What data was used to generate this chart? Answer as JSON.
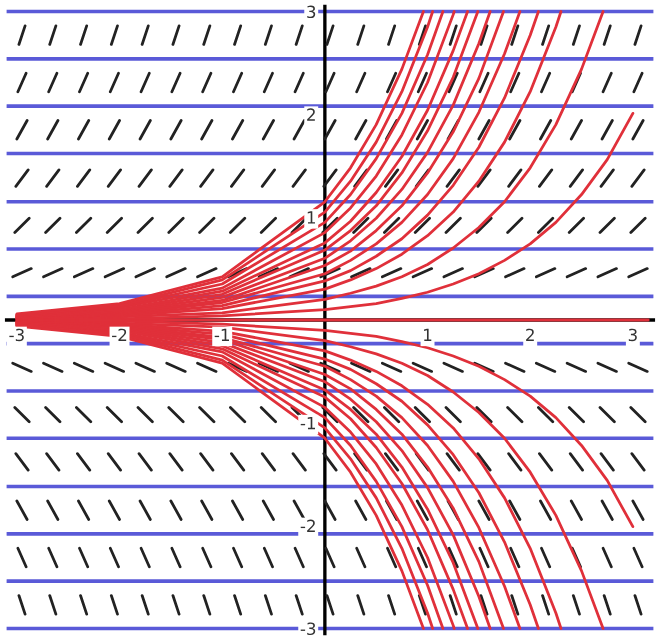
{
  "chart_data": {
    "type": "line",
    "xlim": [
      -3.1,
      3.2
    ],
    "ylim": [
      -3.05,
      3.05
    ],
    "xticks": [
      -3,
      -2,
      -1,
      1,
      2,
      3
    ],
    "yticks": [
      -3,
      -2,
      -1,
      1,
      2,
      3
    ],
    "marker": "none",
    "line_style": "solid",
    "ref_lines": [
      {
        "axis": "y",
        "value": 3.0,
        "color": "#5a5ad8"
      },
      {
        "axis": "y",
        "value": 2.54,
        "color": "#5a5ad8"
      },
      {
        "axis": "y",
        "value": 2.08,
        "color": "#5a5ad8"
      },
      {
        "axis": "y",
        "value": 1.62,
        "color": "#5a5ad8"
      },
      {
        "axis": "y",
        "value": 1.15,
        "color": "#5a5ad8"
      },
      {
        "axis": "y",
        "value": 0.69,
        "color": "#5a5ad8"
      },
      {
        "axis": "y",
        "value": 0.23,
        "color": "#5a5ad8"
      },
      {
        "axis": "y",
        "value": -0.23,
        "color": "#5a5ad8"
      },
      {
        "axis": "y",
        "value": -0.69,
        "color": "#5a5ad8"
      },
      {
        "axis": "y",
        "value": -1.15,
        "color": "#5a5ad8"
      },
      {
        "axis": "y",
        "value": -1.62,
        "color": "#5a5ad8"
      },
      {
        "axis": "y",
        "value": -2.08,
        "color": "#5a5ad8"
      },
      {
        "axis": "y",
        "value": -2.54,
        "color": "#5a5ad8"
      },
      {
        "axis": "y",
        "value": -3.0,
        "color": "#5a5ad8"
      }
    ],
    "series": [
      {
        "color": "#222222",
        "x": [
          -2.98,
          -2.92,
          null,
          -2.68,
          -2.62,
          null,
          -2.38,
          -2.32,
          null,
          -2.08,
          -2.02,
          null,
          -1.78,
          -1.72,
          null,
          -1.48,
          -1.42,
          null,
          -1.18,
          -1.12,
          null,
          -0.88,
          -0.82,
          null,
          -0.58,
          -0.52,
          null,
          -0.28,
          -0.22,
          null,
          0.02,
          0.08,
          null,
          0.32,
          0.38,
          null,
          0.62,
          0.68,
          null,
          0.92,
          0.98,
          null,
          1.22,
          1.28,
          null,
          1.52,
          1.58,
          null,
          1.82,
          1.88,
          null,
          2.12,
          2.18,
          null,
          2.42,
          2.48,
          null,
          2.72,
          2.78,
          null,
          3.02,
          3.08
        ],
        "values": [
          2.68,
          2.86,
          null,
          2.68,
          2.86,
          null,
          2.68,
          2.86,
          null,
          2.68,
          2.86,
          null,
          2.68,
          2.86,
          null,
          2.68,
          2.86,
          null,
          2.68,
          2.86,
          null,
          2.68,
          2.86,
          null,
          2.68,
          2.86,
          null,
          2.68,
          2.86,
          null,
          2.68,
          2.86,
          null,
          2.68,
          2.86,
          null,
          2.68,
          2.86,
          null,
          2.68,
          2.86,
          null,
          2.68,
          2.86,
          null,
          2.68,
          2.86,
          null,
          2.68,
          2.86,
          null,
          2.68,
          2.86,
          null,
          2.68,
          2.86,
          null,
          2.68,
          2.86,
          null,
          2.68,
          2.86
        ]
      },
      {
        "color": "#222222",
        "x": [
          -2.99,
          -2.91,
          null,
          -2.69,
          -2.61,
          null,
          -2.39,
          -2.31,
          null,
          -2.09,
          -2.01,
          null,
          -1.79,
          -1.71,
          null,
          -1.49,
          -1.41,
          null,
          -1.19,
          -1.11,
          null,
          -0.89,
          -0.81,
          null,
          -0.59,
          -0.51,
          null,
          -0.29,
          -0.21,
          null,
          0.01,
          0.09,
          null,
          0.31,
          0.39,
          null,
          0.61,
          0.69,
          null,
          0.91,
          0.99,
          null,
          1.21,
          1.29,
          null,
          1.51,
          1.59,
          null,
          1.81,
          1.89,
          null,
          2.11,
          2.19,
          null,
          2.41,
          2.49,
          null,
          2.71,
          2.79,
          null,
          3.01,
          3.09
        ],
        "values": [
          2.22,
          2.4,
          null,
          2.22,
          2.4,
          null,
          2.22,
          2.4,
          null,
          2.22,
          2.4,
          null,
          2.22,
          2.4,
          null,
          2.22,
          2.4,
          null,
          2.22,
          2.4,
          null,
          2.22,
          2.4,
          null,
          2.22,
          2.4,
          null,
          2.22,
          2.4,
          null,
          2.22,
          2.4,
          null,
          2.22,
          2.4,
          null,
          2.22,
          2.4,
          null,
          2.22,
          2.4,
          null,
          2.22,
          2.4,
          null,
          2.22,
          2.4,
          null,
          2.22,
          2.4,
          null,
          2.22,
          2.4,
          null,
          2.22,
          2.4,
          null,
          2.22,
          2.4,
          null,
          2.22,
          2.4
        ]
      },
      {
        "color": "#222222",
        "x": [
          -3.0,
          -2.9,
          null,
          -2.7,
          -2.6,
          null,
          -2.4,
          -2.3,
          null,
          -2.1,
          -2.0,
          null,
          -1.8,
          -1.7,
          null,
          -1.5,
          -1.4,
          null,
          -1.2,
          -1.1,
          null,
          -0.9,
          -0.8,
          null,
          -0.6,
          -0.5,
          null,
          -0.3,
          -0.2,
          null,
          0.0,
          0.1,
          null,
          0.3,
          0.4,
          null,
          0.6,
          0.7,
          null,
          0.9,
          1.0,
          null,
          1.2,
          1.3,
          null,
          1.5,
          1.6,
          null,
          1.8,
          1.9,
          null,
          2.1,
          2.2,
          null,
          2.4,
          2.5,
          null,
          2.7,
          2.8,
          null,
          3.0,
          3.1
        ],
        "values": [
          1.76,
          1.94,
          null,
          1.76,
          1.94,
          null,
          1.76,
          1.94,
          null,
          1.76,
          1.94,
          null,
          1.76,
          1.94,
          null,
          1.76,
          1.94,
          null,
          1.76,
          1.94,
          null,
          1.76,
          1.94,
          null,
          1.76,
          1.94,
          null,
          1.76,
          1.94,
          null,
          1.76,
          1.94,
          null,
          1.76,
          1.94,
          null,
          1.76,
          1.94,
          null,
          1.76,
          1.94,
          null,
          1.76,
          1.94,
          null,
          1.76,
          1.94,
          null,
          1.76,
          1.94,
          null,
          1.76,
          1.94,
          null,
          1.76,
          1.94,
          null,
          1.76,
          1.94,
          null,
          1.76,
          1.94
        ]
      },
      {
        "color": "#222222",
        "x": [
          -3.01,
          -2.89,
          null,
          -2.71,
          -2.59,
          null,
          -2.41,
          -2.29,
          null,
          -2.11,
          -1.99,
          null,
          -1.81,
          -1.69,
          null,
          -1.51,
          -1.39,
          null,
          -1.21,
          -1.09,
          null,
          -0.91,
          -0.79,
          null,
          -0.61,
          -0.49,
          null,
          -0.31,
          -0.19,
          null,
          -0.01,
          0.11,
          null,
          0.29,
          0.41,
          null,
          0.59,
          0.71,
          null,
          0.89,
          1.01,
          null,
          1.19,
          1.31,
          null,
          1.49,
          1.61,
          null,
          1.79,
          1.91,
          null,
          2.09,
          2.21,
          null,
          2.39,
          2.51,
          null,
          2.69,
          2.81,
          null,
          2.99,
          3.11
        ],
        "values": [
          1.3,
          1.46,
          null,
          1.3,
          1.46,
          null,
          1.3,
          1.46,
          null,
          1.3,
          1.46,
          null,
          1.3,
          1.46,
          null,
          1.3,
          1.46,
          null,
          1.3,
          1.46,
          null,
          1.3,
          1.46,
          null,
          1.3,
          1.46,
          null,
          1.3,
          1.46,
          null,
          1.3,
          1.46,
          null,
          1.3,
          1.46,
          null,
          1.3,
          1.46,
          null,
          1.3,
          1.46,
          null,
          1.3,
          1.46,
          null,
          1.3,
          1.46,
          null,
          1.3,
          1.46,
          null,
          1.3,
          1.46,
          null,
          1.3,
          1.46,
          null,
          1.3,
          1.46,
          null,
          1.3,
          1.46
        ]
      },
      {
        "color": "#222222",
        "x": [
          -3.02,
          -2.88,
          null,
          -2.72,
          -2.58,
          null,
          -2.42,
          -2.28,
          null,
          -2.12,
          -1.98,
          null,
          -1.82,
          -1.68,
          null,
          -1.52,
          -1.38,
          null,
          -1.22,
          -1.08,
          null,
          -0.92,
          -0.78,
          null,
          -0.62,
          -0.48,
          null,
          -0.32,
          -0.18,
          null,
          -0.02,
          0.12,
          null,
          0.28,
          0.42,
          null,
          0.58,
          0.72,
          null,
          0.88,
          1.02,
          null,
          1.18,
          1.32,
          null,
          1.48,
          1.62,
          null,
          1.78,
          1.92,
          null,
          2.08,
          2.22,
          null,
          2.38,
          2.52,
          null,
          2.68,
          2.82,
          null,
          2.98,
          3.12
        ],
        "values": [
          0.85,
          0.99,
          null,
          0.85,
          0.99,
          null,
          0.85,
          0.99,
          null,
          0.85,
          0.99,
          null,
          0.85,
          0.99,
          null,
          0.85,
          0.99,
          null,
          0.85,
          0.99,
          null,
          0.85,
          0.99,
          null,
          0.85,
          0.99,
          null,
          0.85,
          0.99,
          null,
          0.85,
          0.99,
          null,
          0.85,
          0.99,
          null,
          0.85,
          0.99,
          null,
          0.85,
          0.99,
          null,
          0.85,
          0.99,
          null,
          0.85,
          0.99,
          null,
          0.85,
          0.99,
          null,
          0.85,
          0.99,
          null,
          0.85,
          0.99,
          null,
          0.85,
          0.99,
          null,
          0.85,
          0.99
        ]
      },
      {
        "color": "#222222",
        "x": [
          -3.04,
          -2.86,
          null,
          -2.74,
          -2.56,
          null,
          -2.44,
          -2.26,
          null,
          -2.14,
          -1.96,
          null,
          -1.84,
          -1.66,
          null,
          -1.54,
          -1.36,
          null,
          -1.24,
          -1.06,
          null,
          -0.94,
          -0.76,
          null,
          -0.64,
          -0.46,
          null,
          -0.34,
          -0.16,
          null,
          -0.04,
          0.14,
          null,
          0.26,
          0.44,
          null,
          0.56,
          0.74,
          null,
          0.86,
          1.04,
          null,
          1.16,
          1.34,
          null,
          1.46,
          1.64,
          null,
          1.76,
          1.94,
          null,
          2.06,
          2.24,
          null,
          2.36,
          2.54,
          null,
          2.66,
          2.84,
          null,
          2.96,
          3.14
        ],
        "values": [
          0.42,
          0.5,
          null,
          0.42,
          0.5,
          null,
          0.42,
          0.5,
          null,
          0.42,
          0.5,
          null,
          0.42,
          0.5,
          null,
          0.42,
          0.5,
          null,
          0.42,
          0.5,
          null,
          0.42,
          0.5,
          null,
          0.42,
          0.5,
          null,
          0.42,
          0.5,
          null,
          0.42,
          0.5,
          null,
          0.42,
          0.5,
          null,
          0.42,
          0.5,
          null,
          0.42,
          0.5,
          null,
          0.42,
          0.5,
          null,
          0.42,
          0.5,
          null,
          0.42,
          0.5,
          null,
          0.42,
          0.5,
          null,
          0.42,
          0.5,
          null,
          0.42,
          0.5,
          null,
          0.42,
          0.5
        ]
      },
      {
        "color": "#222222",
        "x": [
          -3.04,
          -2.86,
          null,
          -2.74,
          -2.56,
          null,
          -2.44,
          -2.26,
          null,
          -2.14,
          -1.96,
          null,
          -1.84,
          -1.66,
          null,
          -1.54,
          -1.36,
          null,
          -1.24,
          -1.06,
          null,
          -0.94,
          -0.76,
          null,
          -0.64,
          -0.46,
          null,
          -0.34,
          -0.16,
          null,
          -0.04,
          0.14,
          null,
          0.26,
          0.44,
          null,
          0.56,
          0.74,
          null,
          0.86,
          1.04,
          null,
          1.16,
          1.34,
          null,
          1.46,
          1.64,
          null,
          1.76,
          1.94,
          null,
          2.06,
          2.24,
          null,
          2.36,
          2.54,
          null,
          2.66,
          2.84,
          null,
          2.96,
          3.14
        ],
        "values": [
          -0.42,
          -0.5,
          null,
          -0.42,
          -0.5,
          null,
          -0.42,
          -0.5,
          null,
          -0.42,
          -0.5,
          null,
          -0.42,
          -0.5,
          null,
          -0.42,
          -0.5,
          null,
          -0.42,
          -0.5,
          null,
          -0.42,
          -0.5,
          null,
          -0.42,
          -0.5,
          null,
          -0.42,
          -0.5,
          null,
          -0.42,
          -0.5,
          null,
          -0.42,
          -0.5,
          null,
          -0.42,
          -0.5,
          null,
          -0.42,
          -0.5,
          null,
          -0.42,
          -0.5,
          null,
          -0.42,
          -0.5,
          null,
          -0.42,
          -0.5,
          null,
          -0.42,
          -0.5,
          null,
          -0.42,
          -0.5,
          null,
          -0.42,
          -0.5,
          null,
          -0.42,
          -0.5
        ]
      },
      {
        "color": "#222222",
        "x": [
          -3.02,
          -2.88,
          null,
          -2.72,
          -2.58,
          null,
          -2.42,
          -2.28,
          null,
          -2.12,
          -1.98,
          null,
          -1.82,
          -1.68,
          null,
          -1.52,
          -1.38,
          null,
          -1.22,
          -1.08,
          null,
          -0.92,
          -0.78,
          null,
          -0.62,
          -0.48,
          null,
          -0.32,
          -0.18,
          null,
          -0.02,
          0.12,
          null,
          0.28,
          0.42,
          null,
          0.58,
          0.72,
          null,
          0.88,
          1.02,
          null,
          1.18,
          1.32,
          null,
          1.48,
          1.62,
          null,
          1.78,
          1.92,
          null,
          2.08,
          2.22,
          null,
          2.38,
          2.52,
          null,
          2.68,
          2.82,
          null,
          2.98,
          3.12
        ],
        "values": [
          -0.85,
          -0.99,
          null,
          -0.85,
          -0.99,
          null,
          -0.85,
          -0.99,
          null,
          -0.85,
          -0.99,
          null,
          -0.85,
          -0.99,
          null,
          -0.85,
          -0.99,
          null,
          -0.85,
          -0.99,
          null,
          -0.85,
          -0.99,
          null,
          -0.85,
          -0.99,
          null,
          -0.85,
          -0.99,
          null,
          -0.85,
          -0.99,
          null,
          -0.85,
          -0.99,
          null,
          -0.85,
          -0.99,
          null,
          -0.85,
          -0.99,
          null,
          -0.85,
          -0.99,
          null,
          -0.85,
          -0.99,
          null,
          -0.85,
          -0.99,
          null,
          -0.85,
          -0.99,
          null,
          -0.85,
          -0.99,
          null,
          -0.85,
          -0.99,
          null,
          -0.85,
          -0.99
        ]
      },
      {
        "color": "#222222",
        "x": [
          -3.01,
          -2.89,
          null,
          -2.71,
          -2.59,
          null,
          -2.41,
          -2.29,
          null,
          -2.11,
          -1.99,
          null,
          -1.81,
          -1.69,
          null,
          -1.51,
          -1.39,
          null,
          -1.21,
          -1.09,
          null,
          -0.91,
          -0.79,
          null,
          -0.61,
          -0.49,
          null,
          -0.31,
          -0.19,
          null,
          -0.01,
          0.11,
          null,
          0.29,
          0.41,
          null,
          0.59,
          0.71,
          null,
          0.89,
          1.01,
          null,
          1.19,
          1.31,
          null,
          1.49,
          1.61,
          null,
          1.79,
          1.91,
          null,
          2.09,
          2.21,
          null,
          2.39,
          2.51,
          null,
          2.69,
          2.81,
          null,
          2.99,
          3.11
        ],
        "values": [
          -1.3,
          -1.46,
          null,
          -1.3,
          -1.46,
          null,
          -1.3,
          -1.46,
          null,
          -1.3,
          -1.46,
          null,
          -1.3,
          -1.46,
          null,
          -1.3,
          -1.46,
          null,
          -1.3,
          -1.46,
          null,
          -1.3,
          -1.46,
          null,
          -1.3,
          -1.46,
          null,
          -1.3,
          -1.46,
          null,
          -1.3,
          -1.46,
          null,
          -1.3,
          -1.46,
          null,
          -1.3,
          -1.46,
          null,
          -1.3,
          -1.46,
          null,
          -1.3,
          -1.46,
          null,
          -1.3,
          -1.46,
          null,
          -1.3,
          -1.46,
          null,
          -1.3,
          -1.46,
          null,
          -1.3,
          -1.46,
          null,
          -1.3,
          -1.46,
          null,
          -1.3,
          -1.46
        ]
      },
      {
        "color": "#222222",
        "x": [
          -3.0,
          -2.9,
          null,
          -2.7,
          -2.6,
          null,
          -2.4,
          -2.3,
          null,
          -2.1,
          -2.0,
          null,
          -1.8,
          -1.7,
          null,
          -1.5,
          -1.4,
          null,
          -1.2,
          -1.1,
          null,
          -0.9,
          -0.8,
          null,
          -0.6,
          -0.5,
          null,
          -0.3,
          -0.2,
          null,
          0.0,
          0.1,
          null,
          0.3,
          0.4,
          null,
          0.6,
          0.7,
          null,
          0.9,
          1.0,
          null,
          1.2,
          1.3,
          null,
          1.5,
          1.6,
          null,
          1.8,
          1.9,
          null,
          2.1,
          2.2,
          null,
          2.4,
          2.5,
          null,
          2.7,
          2.8,
          null,
          3.0,
          3.1
        ],
        "values": [
          -1.76,
          -1.94,
          null,
          -1.76,
          -1.94,
          null,
          -1.76,
          -1.94,
          null,
          -1.76,
          -1.94,
          null,
          -1.76,
          -1.94,
          null,
          -1.76,
          -1.94,
          null,
          -1.76,
          -1.94,
          null,
          -1.76,
          -1.94,
          null,
          -1.76,
          -1.94,
          null,
          -1.76,
          -1.94,
          null,
          -1.76,
          -1.94,
          null,
          -1.76,
          -1.94,
          null,
          -1.76,
          -1.94,
          null,
          -1.76,
          -1.94,
          null,
          -1.76,
          -1.94,
          null,
          -1.76,
          -1.94,
          null,
          -1.76,
          -1.94,
          null,
          -1.76,
          -1.94,
          null,
          -1.76,
          -1.94,
          null,
          -1.76,
          -1.94,
          null,
          -1.76,
          -1.94
        ]
      },
      {
        "color": "#222222",
        "x": [
          -2.99,
          -2.91,
          null,
          -2.69,
          -2.61,
          null,
          -2.39,
          -2.31,
          null,
          -2.09,
          -2.01,
          null,
          -1.79,
          -1.71,
          null,
          -1.49,
          -1.41,
          null,
          -1.19,
          -1.11,
          null,
          -0.89,
          -0.81,
          null,
          -0.59,
          -0.51,
          null,
          -0.29,
          -0.21,
          null,
          0.01,
          0.09,
          null,
          0.31,
          0.39,
          null,
          0.61,
          0.69,
          null,
          0.91,
          0.99,
          null,
          1.21,
          1.29,
          null,
          1.51,
          1.59,
          null,
          1.81,
          1.89,
          null,
          2.11,
          2.19,
          null,
          2.41,
          2.49,
          null,
          2.71,
          2.79,
          null,
          3.01,
          3.09
        ],
        "values": [
          -2.22,
          -2.4,
          null,
          -2.22,
          -2.4,
          null,
          -2.22,
          -2.4,
          null,
          -2.22,
          -2.4,
          null,
          -2.22,
          -2.4,
          null,
          -2.22,
          -2.4,
          null,
          -2.22,
          -2.4,
          null,
          -2.22,
          -2.4,
          null,
          -2.22,
          -2.4,
          null,
          -2.22,
          -2.4,
          null,
          -2.22,
          -2.4,
          null,
          -2.22,
          -2.4,
          null,
          -2.22,
          -2.4,
          null,
          -2.22,
          -2.4,
          null,
          -2.22,
          -2.4,
          null,
          -2.22,
          -2.4,
          null,
          -2.22,
          -2.4,
          null,
          -2.22,
          -2.4,
          null,
          -2.22,
          -2.4,
          null,
          -2.22,
          -2.4,
          null,
          -2.22,
          -2.4
        ]
      },
      {
        "color": "#222222",
        "x": [
          -2.98,
          -2.92,
          null,
          -2.68,
          -2.62,
          null,
          -2.38,
          -2.32,
          null,
          -2.08,
          -2.02,
          null,
          -1.78,
          -1.72,
          null,
          -1.48,
          -1.42,
          null,
          -1.18,
          -1.12,
          null,
          -0.88,
          -0.82,
          null,
          -0.58,
          -0.52,
          null,
          -0.28,
          -0.22,
          null,
          0.02,
          0.08,
          null,
          0.32,
          0.38,
          null,
          0.62,
          0.68,
          null,
          0.92,
          0.98,
          null,
          1.22,
          1.28,
          null,
          1.52,
          1.58,
          null,
          1.82,
          1.88,
          null,
          2.12,
          2.18,
          null,
          2.42,
          2.48,
          null,
          2.72,
          2.78,
          null,
          3.02,
          3.08
        ],
        "values": [
          -2.68,
          -2.86,
          null,
          -2.68,
          -2.86,
          null,
          -2.68,
          -2.86,
          null,
          -2.68,
          -2.86,
          null,
          -2.68,
          -2.86,
          null,
          -2.68,
          -2.86,
          null,
          -2.68,
          -2.86,
          null,
          -2.68,
          -2.86,
          null,
          -2.68,
          -2.86,
          null,
          -2.68,
          -2.86,
          null,
          -2.68,
          -2.86,
          null,
          -2.68,
          -2.86,
          null,
          -2.68,
          -2.86,
          null,
          -2.68,
          -2.86,
          null,
          -2.68,
          -2.86,
          null,
          -2.68,
          -2.86,
          null,
          -2.68,
          -2.86,
          null,
          -2.68,
          -2.86,
          null,
          -2.68,
          -2.86,
          null,
          -2.68,
          -2.86,
          null,
          -2.68,
          -2.86
        ]
      },
      {
        "color": "#e0303a",
        "x": [
          -3,
          3.15
        ],
        "values": [
          0,
          0
        ]
      },
      {
        "color": "#e0303a",
        "x": [
          -3,
          -2,
          -1,
          0,
          0.25,
          0.5,
          0.75,
          1,
          1.25,
          1.5,
          1.75,
          2,
          2.25,
          2.5,
          2.75,
          3
        ],
        "values": [
          0.01,
          0.01,
          0.04,
          0.1,
          0.13,
          0.16,
          0.21,
          0.27,
          0.35,
          0.45,
          0.58,
          0.74,
          0.95,
          1.22,
          1.56,
          2.01
        ]
      },
      {
        "color": "#e0303a",
        "x": [
          -3,
          -2,
          -1,
          0,
          0.25,
          0.5,
          0.75,
          1,
          1.25,
          1.5,
          1.75,
          2,
          2.25,
          2.5,
          2.71
        ],
        "values": [
          0.01,
          0.03,
          0.07,
          0.2,
          0.26,
          0.33,
          0.42,
          0.54,
          0.7,
          0.9,
          1.15,
          1.48,
          1.9,
          2.44,
          3
        ]
      },
      {
        "color": "#e0303a",
        "x": [
          -3,
          -2,
          -1,
          0,
          0.25,
          0.5,
          0.75,
          1,
          1.25,
          1.5,
          1.75,
          2,
          2.25,
          2.3
        ],
        "values": [
          0.02,
          0.04,
          0.11,
          0.3,
          0.39,
          0.5,
          0.64,
          0.82,
          1.05,
          1.35,
          1.73,
          2.22,
          2.85,
          3
        ]
      },
      {
        "color": "#e0303a",
        "x": [
          -3,
          -2,
          -1,
          0,
          0.25,
          0.5,
          0.75,
          1,
          1.25,
          1.5,
          1.75,
          2,
          2.08
        ],
        "values": [
          0.02,
          0.05,
          0.14,
          0.38,
          0.48,
          0.62,
          0.79,
          1.02,
          1.31,
          1.68,
          2.16,
          2.77,
          3
        ]
      },
      {
        "color": "#e0303a",
        "x": [
          -3,
          -2,
          -1,
          0,
          0.25,
          0.5,
          0.75,
          1,
          1.25,
          1.5,
          1.75,
          1.9
        ],
        "values": [
          0.02,
          0.06,
          0.17,
          0.45,
          0.58,
          0.74,
          0.95,
          1.22,
          1.57,
          2.02,
          2.59,
          3
        ]
      },
      {
        "color": "#e0303a",
        "x": [
          -3,
          -2,
          -1,
          0,
          0.25,
          0.5,
          0.75,
          1,
          1.25,
          1.5,
          1.74
        ],
        "values": [
          0.03,
          0.07,
          0.19,
          0.53,
          0.67,
          0.87,
          1.11,
          1.43,
          1.83,
          2.35,
          3
        ]
      },
      {
        "color": "#e0303a",
        "x": [
          -3,
          -2,
          -1,
          0,
          0.25,
          0.5,
          0.75,
          1,
          1.25,
          1.5,
          1.61
        ],
        "values": [
          0.03,
          0.08,
          0.22,
          0.6,
          0.77,
          0.99,
          1.27,
          1.63,
          2.09,
          2.69,
          3
        ]
      },
      {
        "color": "#e0303a",
        "x": [
          -3,
          -2,
          -1,
          0,
          0.25,
          0.5,
          0.75,
          1,
          1.25,
          1.49
        ],
        "values": [
          0.03,
          0.09,
          0.25,
          0.68,
          0.87,
          1.11,
          1.43,
          1.84,
          2.36,
          3
        ]
      },
      {
        "color": "#e0303a",
        "x": [
          -3,
          -2,
          -1,
          0,
          0.25,
          0.5,
          0.75,
          1,
          1.25,
          1.39
        ],
        "values": [
          0.04,
          0.1,
          0.28,
          0.75,
          0.96,
          1.24,
          1.59,
          2.04,
          2.62,
          3
        ]
      },
      {
        "color": "#e0303a",
        "x": [
          -3,
          -2,
          -1,
          0,
          0.25,
          0.5,
          0.75,
          1,
          1.25,
          1.26
        ],
        "values": [
          0.04,
          0.12,
          0.31,
          0.85,
          1.09,
          1.4,
          1.8,
          2.31,
          2.97,
          3
        ]
      },
      {
        "color": "#e0303a",
        "x": [
          -3,
          -2,
          -1,
          0,
          0.25,
          0.5,
          0.75,
          1,
          1.15
        ],
        "values": [
          0.05,
          0.13,
          0.35,
          0.95,
          1.22,
          1.57,
          2.01,
          2.58,
          3
        ]
      },
      {
        "color": "#e0303a",
        "x": [
          -3,
          -2,
          -1,
          0,
          0.25,
          0.5,
          0.75,
          1,
          1.05
        ],
        "values": [
          0.05,
          0.14,
          0.39,
          1.05,
          1.35,
          1.73,
          2.22,
          2.85,
          3
        ]
      },
      {
        "color": "#e0303a",
        "x": [
          -3,
          -2,
          -1,
          0,
          0.25,
          0.5,
          0.75,
          0.96
        ],
        "values": [
          0.06,
          0.16,
          0.42,
          1.15,
          1.48,
          1.9,
          2.44,
          3
        ]
      },
      {
        "color": "#e0303a",
        "x": [
          -3,
          -2,
          -1,
          0,
          0.25,
          0.5,
          0.75,
          1,
          1.25,
          1.5,
          1.75,
          2,
          2.25,
          2.5,
          2.75,
          3
        ],
        "values": [
          -0.01,
          -0.01,
          -0.04,
          -0.1,
          -0.13,
          -0.16,
          -0.21,
          -0.27,
          -0.35,
          -0.45,
          -0.58,
          -0.74,
          -0.95,
          -1.22,
          -1.56,
          -2.01
        ]
      },
      {
        "color": "#e0303a",
        "x": [
          -3,
          -2,
          -1,
          0,
          0.25,
          0.5,
          0.75,
          1,
          1.25,
          1.5,
          1.75,
          2,
          2.25,
          2.5,
          2.71
        ],
        "values": [
          -0.01,
          -0.03,
          -0.07,
          -0.2,
          -0.26,
          -0.33,
          -0.42,
          -0.54,
          -0.7,
          -0.9,
          -1.15,
          -1.48,
          -1.9,
          -2.44,
          -3
        ]
      },
      {
        "color": "#e0303a",
        "x": [
          -3,
          -2,
          -1,
          0,
          0.25,
          0.5,
          0.75,
          1,
          1.25,
          1.5,
          1.75,
          2,
          2.25,
          2.3
        ],
        "values": [
          -0.02,
          -0.04,
          -0.11,
          -0.3,
          -0.39,
          -0.5,
          -0.64,
          -0.82,
          -1.05,
          -1.35,
          -1.73,
          -2.22,
          -2.85,
          -3
        ]
      },
      {
        "color": "#e0303a",
        "x": [
          -3,
          -2,
          -1,
          0,
          0.25,
          0.5,
          0.75,
          1,
          1.25,
          1.5,
          1.75,
          2,
          2.08
        ],
        "values": [
          -0.02,
          -0.05,
          -0.14,
          -0.38,
          -0.48,
          -0.62,
          -0.79,
          -1.02,
          -1.31,
          -1.68,
          -2.16,
          -2.77,
          -3
        ]
      },
      {
        "color": "#e0303a",
        "x": [
          -3,
          -2,
          -1,
          0,
          0.25,
          0.5,
          0.75,
          1,
          1.25,
          1.5,
          1.75,
          1.9
        ],
        "values": [
          -0.02,
          -0.06,
          -0.17,
          -0.45,
          -0.58,
          -0.74,
          -0.95,
          -1.22,
          -1.57,
          -2.02,
          -2.59,
          -3
        ]
      },
      {
        "color": "#e0303a",
        "x": [
          -3,
          -2,
          -1,
          0,
          0.25,
          0.5,
          0.75,
          1,
          1.25,
          1.5,
          1.74
        ],
        "values": [
          -0.03,
          -0.07,
          -0.19,
          -0.53,
          -0.67,
          -0.87,
          -1.11,
          -1.43,
          -1.83,
          -2.35,
          -3
        ]
      },
      {
        "color": "#e0303a",
        "x": [
          -3,
          -2,
          -1,
          0,
          0.25,
          0.5,
          0.75,
          1,
          1.25,
          1.5,
          1.61
        ],
        "values": [
          -0.03,
          -0.08,
          -0.22,
          -0.6,
          -0.77,
          -0.99,
          -1.27,
          -1.63,
          -2.09,
          -2.69,
          -3
        ]
      },
      {
        "color": "#e0303a",
        "x": [
          -3,
          -2,
          -1,
          0,
          0.25,
          0.5,
          0.75,
          1,
          1.25,
          1.49
        ],
        "values": [
          -0.03,
          -0.09,
          -0.25,
          -0.68,
          -0.87,
          -1.11,
          -1.43,
          -1.84,
          -2.36,
          -3
        ]
      },
      {
        "color": "#e0303a",
        "x": [
          -3,
          -2,
          -1,
          0,
          0.25,
          0.5,
          0.75,
          1,
          1.25,
          1.39
        ],
        "values": [
          -0.04,
          -0.1,
          -0.28,
          -0.75,
          -0.96,
          -1.24,
          -1.59,
          -2.04,
          -2.62,
          -3
        ]
      },
      {
        "color": "#e0303a",
        "x": [
          -3,
          -2,
          -1,
          0,
          0.25,
          0.5,
          0.75,
          1,
          1.25,
          1.26
        ],
        "values": [
          -0.04,
          -0.12,
          -0.31,
          -0.85,
          -1.09,
          -1.4,
          -1.8,
          -2.31,
          -2.97,
          -3
        ]
      },
      {
        "color": "#e0303a",
        "x": [
          -3,
          -2,
          -1,
          0,
          0.25,
          0.5,
          0.75,
          1,
          1.15
        ],
        "values": [
          -0.05,
          -0.13,
          -0.35,
          -0.95,
          -1.22,
          -1.57,
          -2.01,
          -2.58,
          -3
        ]
      },
      {
        "color": "#e0303a",
        "x": [
          -3,
          -2,
          -1,
          0,
          0.25,
          0.5,
          0.75,
          1,
          1.05
        ],
        "values": [
          -0.05,
          -0.14,
          -0.39,
          -1.05,
          -1.35,
          -1.73,
          -2.22,
          -2.85,
          -3
        ]
      },
      {
        "color": "#e0303a",
        "x": [
          -3,
          -2,
          -1,
          0,
          0.25,
          0.5,
          0.75,
          0.96
        ],
        "values": [
          -0.06,
          -0.16,
          -0.42,
          -1.15,
          -1.48,
          -1.9,
          -2.44,
          -3
        ]
      }
    ]
  }
}
